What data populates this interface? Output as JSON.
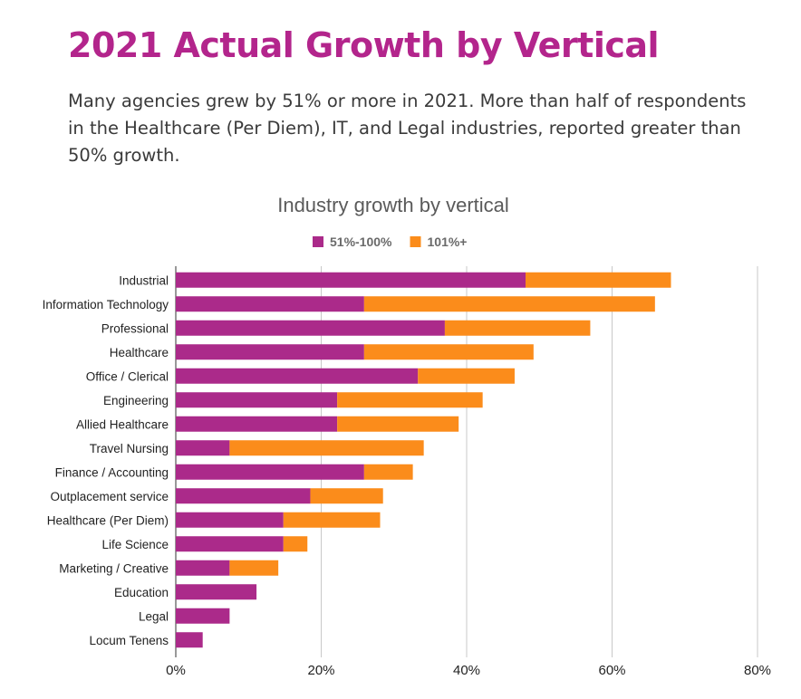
{
  "heading": "2021 Actual Growth by Vertical",
  "intro": "Many agencies grew by 51% or more in 2021. More than half of respondents in the Healthcare (Per Diem), IT, and Legal industries, reported greater than 50% growth.",
  "colors": {
    "heading": "#b3258c",
    "series_51_100": "#ab2a8a",
    "series_101_plus": "#fb8c1b"
  },
  "chart_data": {
    "type": "bar",
    "orientation": "horizontal",
    "stacked": true,
    "title": "Industry growth by vertical",
    "legend_position": "top",
    "xlabel": "",
    "ylabel": "",
    "xlim": [
      0,
      80
    ],
    "xticks": [
      "0%",
      "20%",
      "40%",
      "60%",
      "80%"
    ],
    "grid": true,
    "categories": [
      "Industrial",
      "Information Technology",
      "Professional",
      "Healthcare",
      "Office / Clerical",
      "Engineering",
      "Allied Healthcare",
      "Travel Nursing",
      "Finance / Accounting",
      "Outplacement service",
      "Healthcare (Per Diem)",
      "Life Science",
      "Marketing / Creative",
      "Education",
      "Legal",
      "Locum Tenens"
    ],
    "series": [
      {
        "name": "51%-100%",
        "color": "#ab2a8a",
        "values": [
          48.1,
          25.9,
          37.0,
          25.9,
          33.3,
          22.2,
          22.2,
          7.4,
          25.9,
          18.5,
          14.8,
          14.8,
          7.4,
          11.1,
          7.4,
          3.7
        ]
      },
      {
        "name": "101%+",
        "color": "#fb8c1b",
        "values": [
          20.0,
          40.0,
          20.0,
          23.3,
          13.3,
          20.0,
          16.7,
          26.7,
          6.7,
          10.0,
          13.3,
          3.3,
          6.7,
          0,
          0,
          0
        ]
      }
    ]
  }
}
